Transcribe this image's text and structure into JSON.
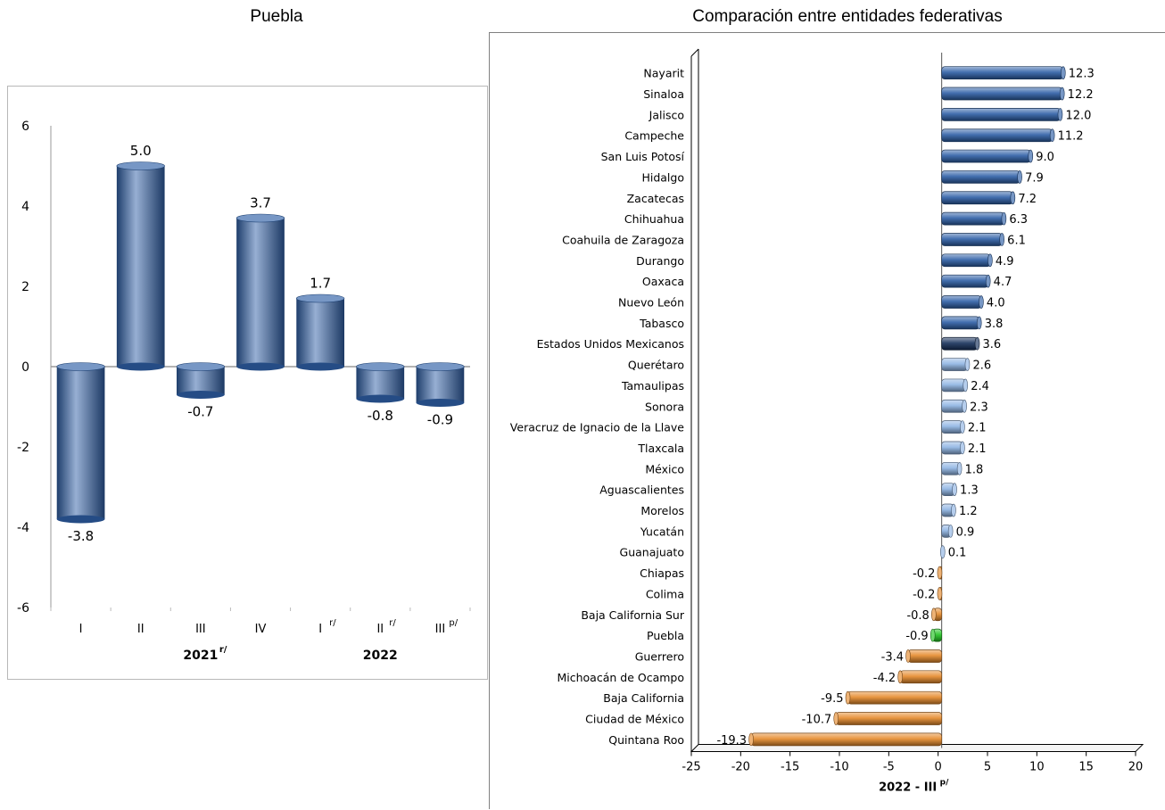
{
  "titles": {
    "left": "Puebla",
    "right": "Comparación entre entidades federativas"
  },
  "colors": {
    "blue_dark": "#2e5fa6",
    "blue_light": "#8fb4e3",
    "national": "#17315c",
    "orange": "#e58a2c",
    "highlight": "#22c322"
  },
  "chart_data": [
    {
      "type": "bar",
      "title": "Puebla",
      "categories": [
        "I",
        "II",
        "III",
        "IV",
        "I",
        "II",
        "III"
      ],
      "category_marks": [
        "",
        "",
        "",
        "",
        "r/",
        "r/",
        "p/"
      ],
      "groups": [
        {
          "label": "2021",
          "mark": "r/"
        },
        {
          "label": "2022",
          "mark": ""
        }
      ],
      "values": [
        -3.8,
        5.0,
        -0.7,
        3.7,
        1.7,
        -0.8,
        -0.9
      ],
      "value_labels": [
        "-3.8",
        "5.0",
        "-0.7",
        "3.7",
        "1.7",
        "-0.8",
        "-0.9"
      ],
      "ylim": [
        -6,
        6
      ],
      "yticks": [
        "6",
        "4",
        "2",
        "0",
        "-2",
        "-4",
        "-6"
      ],
      "grid": false,
      "legend": "none"
    },
    {
      "type": "bar",
      "orientation": "horizontal",
      "title": "Comparación entre entidades federativas",
      "xlabel": "2022 - III",
      "xlabel_mark": "p/",
      "xlim": [
        -25,
        20
      ],
      "xticks": [
        "-25",
        "-20",
        "-15",
        "-10",
        "-5",
        "0",
        "5",
        "10",
        "15",
        "20"
      ],
      "grid": false,
      "legend": "none",
      "categories": [
        "Nayarit",
        "Sinaloa",
        "Jalisco",
        "Campeche",
        "San Luis Potosí",
        "Hidalgo",
        "Zacatecas",
        "Chihuahua",
        "Coahuila de Zaragoza",
        "Durango",
        "Oaxaca",
        "Nuevo León",
        "Tabasco",
        "Estados Unidos Mexicanos",
        "Querétaro",
        "Tamaulipas",
        "Sonora",
        "Veracruz de Ignacio de la Llave",
        "Tlaxcala",
        "México",
        "Aguascalientes",
        "Morelos",
        "Yucatán",
        "Guanajuato",
        "Chiapas",
        "Colima",
        "Baja California Sur",
        "Puebla",
        "Guerrero",
        "Michoacán de Ocampo",
        "Baja California",
        "Ciudad de México",
        "Quintana Roo"
      ],
      "values": [
        12.3,
        12.2,
        12.0,
        11.2,
        9.0,
        7.9,
        7.2,
        6.3,
        6.1,
        4.9,
        4.7,
        4.0,
        3.8,
        3.6,
        2.6,
        2.4,
        2.3,
        2.1,
        2.1,
        1.8,
        1.3,
        1.2,
        0.9,
        0.1,
        -0.2,
        -0.2,
        -0.8,
        -0.9,
        -3.4,
        -4.2,
        -9.5,
        -10.7,
        -19.3
      ],
      "value_labels": [
        "12.3",
        "12.2",
        "12.0",
        "11.2",
        "9.0",
        "7.9",
        "7.2",
        "6.3",
        "6.1",
        "4.9",
        "4.7",
        "4.0",
        "3.8",
        "3.6",
        "2.6",
        "2.4",
        "2.3",
        "2.1",
        "2.1",
        "1.8",
        "1.3",
        "1.2",
        "0.9",
        "0.1",
        "-0.2",
        "-0.2",
        "-0.8",
        "-0.9",
        "-3.4",
        "-4.2",
        "-9.5",
        "-10.7",
        "-19.3"
      ]
    }
  ]
}
